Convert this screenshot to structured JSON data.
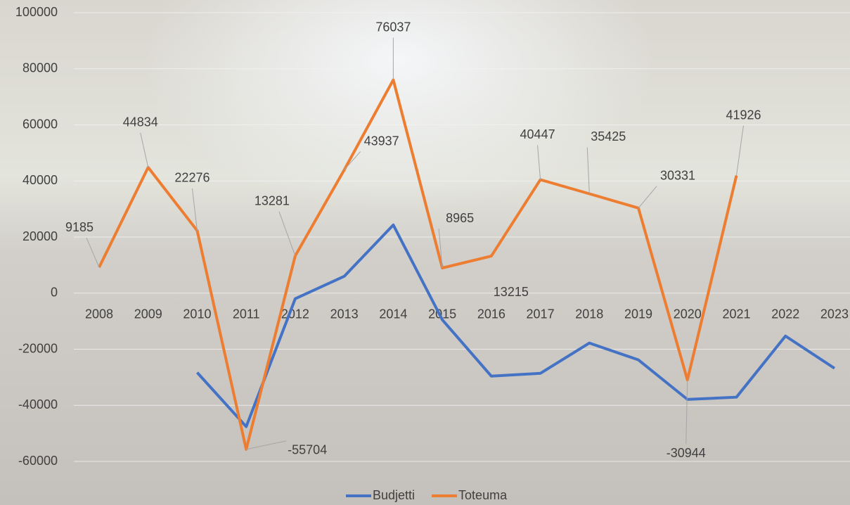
{
  "chart_data": {
    "type": "line",
    "categories": [
      "2008",
      "2009",
      "2010",
      "2011",
      "2012",
      "2013",
      "2014",
      "2015",
      "2016",
      "2017",
      "2018",
      "2019",
      "2020",
      "2021",
      "2022",
      "2023"
    ],
    "series": [
      {
        "name": "Budjetti",
        "color": "#4472c4",
        "values": [
          null,
          null,
          -28300,
          -47600,
          -2000,
          6000,
          24300,
          -9500,
          -29600,
          -28600,
          -17800,
          -23800,
          -37900,
          -37100,
          -15300,
          -26800
        ]
      },
      {
        "name": "Toteuma",
        "color": "#ed7d31",
        "values": [
          9185,
          44834,
          22276,
          -55704,
          13281,
          43937,
          76037,
          8965,
          13215,
          40447,
          35425,
          30331,
          -30944,
          41926,
          null,
          null
        ]
      }
    ],
    "ylim": [
      -60000,
      100000
    ],
    "yticks": [
      -60000,
      -40000,
      -20000,
      0,
      20000,
      40000,
      60000,
      80000,
      100000
    ],
    "grid": true,
    "data_labels_series": 1,
    "legend": "bottom"
  }
}
